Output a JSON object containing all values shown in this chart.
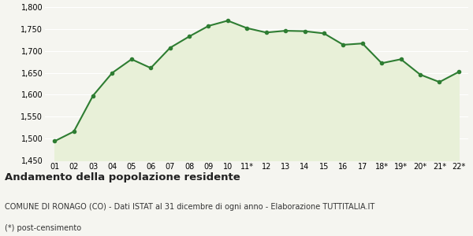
{
  "x_labels": [
    "01",
    "02",
    "03",
    "04",
    "05",
    "06",
    "07",
    "08",
    "09",
    "10",
    "11*",
    "12",
    "13",
    "14",
    "15",
    "16",
    "17",
    "18*",
    "19*",
    "20*",
    "21*",
    "22*"
  ],
  "y_values": [
    1494,
    1516,
    1598,
    1650,
    1681,
    1661,
    1707,
    1733,
    1757,
    1769,
    1752,
    1742,
    1746,
    1745,
    1740,
    1714,
    1717,
    1672,
    1681,
    1646,
    1629,
    1652
  ],
  "ylim": [
    1450,
    1800
  ],
  "yticks": [
    1450,
    1500,
    1550,
    1600,
    1650,
    1700,
    1750,
    1800
  ],
  "line_color": "#2e7d32",
  "fill_color": "#e8f0d8",
  "marker_size": 3.0,
  "line_width": 1.5,
  "bg_color": "#f5f5f0",
  "plot_bg_color": "#f5f5f0",
  "grid_color": "#ffffff",
  "title": "Andamento della popolazione residente",
  "subtitle": "COMUNE DI RONAGO (CO) - Dati ISTAT al 31 dicembre di ogni anno - Elaborazione TUTTITALIA.IT",
  "footnote": "(*) post-censimento",
  "title_fontsize": 9.5,
  "subtitle_fontsize": 7.0,
  "footnote_fontsize": 7.0,
  "tick_fontsize": 7.0
}
